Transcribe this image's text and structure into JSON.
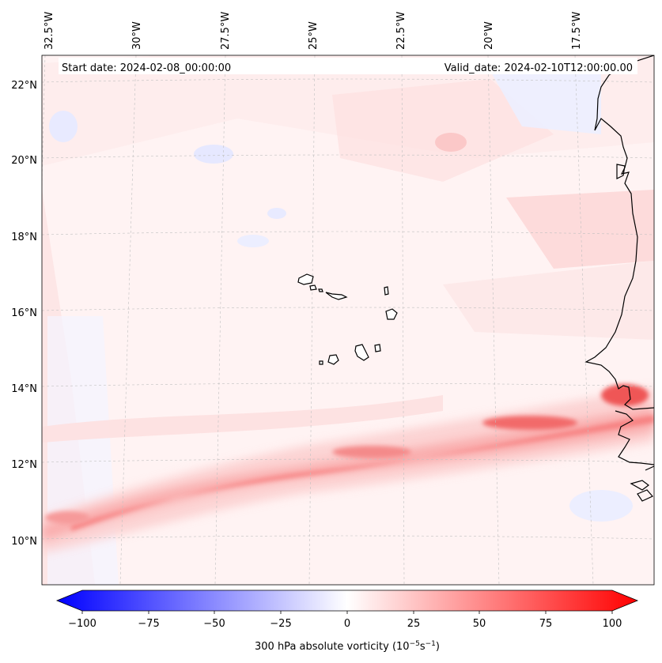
{
  "header": {
    "start_date": "Start date: 2024-02-08_00:00:00",
    "valid_date": "Valid_date: 2024-02-10T12:00:00.00"
  },
  "map": {
    "longitude_labels": [
      "32.5°W",
      "30°W",
      "27.5°W",
      "25°W",
      "22.5°W",
      "20°W",
      "17.5°W"
    ],
    "latitude_labels": [
      "22°N",
      "20°N",
      "18°N",
      "16°N",
      "14°N",
      "12°N",
      "10°N"
    ],
    "field": "300 hPa absolute vorticity",
    "colors": {
      "positive": "#ff0000",
      "negative": "#0000ff",
      "coast": "#000000",
      "grid": "#b0b0b0"
    }
  },
  "colorbar": {
    "tick_labels": [
      "−100",
      "−75",
      "−50",
      "−25",
      "0",
      "25",
      "50",
      "75",
      "100"
    ],
    "label_text": "300 hPa absolute vorticity",
    "label_units": "(10",
    "label_exp1": "−5",
    "label_mid": "s",
    "label_exp2": "−1",
    "label_close": ")",
    "min": -100,
    "max": 100
  }
}
